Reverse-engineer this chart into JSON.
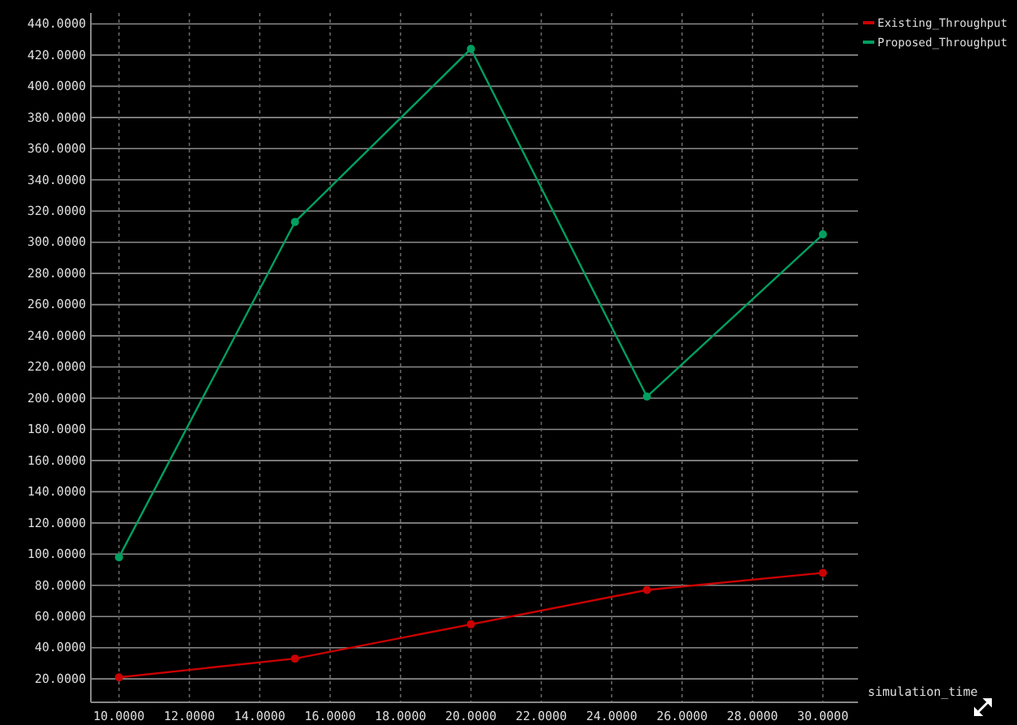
{
  "chart_data": {
    "type": "line",
    "xlabel": "simulation_time",
    "x": [
      10,
      15,
      20,
      25,
      30
    ],
    "series": [
      {
        "name": "Existing_Throughput",
        "color": "#cc0000",
        "values": [
          21,
          33,
          55,
          77,
          88
        ]
      },
      {
        "name": "Proposed_Throughput",
        "color": "#00a060",
        "values": [
          98,
          313,
          424,
          201,
          305
        ]
      }
    ],
    "xlim": [
      9.2,
      31
    ],
    "xticks": [
      {
        "value": 10,
        "label": "10.0000"
      },
      {
        "value": 12,
        "label": "12.0000"
      },
      {
        "value": 14,
        "label": "14.0000"
      },
      {
        "value": 16,
        "label": "16.0000"
      },
      {
        "value": 18,
        "label": "18.0000"
      },
      {
        "value": 20,
        "label": "20.0000"
      },
      {
        "value": 22,
        "label": "22.0000"
      },
      {
        "value": 24,
        "label": "24.0000"
      },
      {
        "value": 26,
        "label": "26.0000"
      },
      {
        "value": 28,
        "label": "28.0000"
      },
      {
        "value": 30,
        "label": "30.0000"
      }
    ],
    "ylim": [
      5,
      447
    ],
    "yticks": [
      {
        "value": 20,
        "label": "20.0000"
      },
      {
        "value": 40,
        "label": "40.0000"
      },
      {
        "value": 60,
        "label": "60.0000"
      },
      {
        "value": 80,
        "label": "80.0000"
      },
      {
        "value": 100,
        "label": "100.0000"
      },
      {
        "value": 120,
        "label": "120.0000"
      },
      {
        "value": 140,
        "label": "140.0000"
      },
      {
        "value": 160,
        "label": "160.0000"
      },
      {
        "value": 180,
        "label": "180.0000"
      },
      {
        "value": 200,
        "label": "200.0000"
      },
      {
        "value": 220,
        "label": "220.0000"
      },
      {
        "value": 240,
        "label": "240.0000"
      },
      {
        "value": 260,
        "label": "260.0000"
      },
      {
        "value": 280,
        "label": "280.0000"
      },
      {
        "value": 300,
        "label": "300.0000"
      },
      {
        "value": 320,
        "label": "320.0000"
      },
      {
        "value": 340,
        "label": "340.0000"
      },
      {
        "value": 360,
        "label": "360.0000"
      },
      {
        "value": 380,
        "label": "380.0000"
      },
      {
        "value": 400,
        "label": "400.0000"
      },
      {
        "value": 420,
        "label": "420.0000"
      },
      {
        "value": 440,
        "label": "440.0000"
      }
    ],
    "grid": true,
    "legend": "top right",
    "marker": "circle",
    "line_style": "solid"
  }
}
